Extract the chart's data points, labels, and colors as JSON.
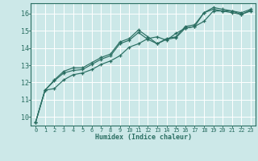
{
  "xlabel": "Humidex (Indice chaleur)",
  "bg_color": "#cce8e8",
  "grid_color": "#ffffff",
  "line_color": "#2a6e62",
  "xlim": [
    -0.5,
    23.5
  ],
  "ylim": [
    9.5,
    16.6
  ],
  "xticks": [
    0,
    1,
    2,
    3,
    4,
    5,
    6,
    7,
    8,
    9,
    10,
    11,
    12,
    13,
    14,
    15,
    16,
    17,
    18,
    19,
    20,
    21,
    22,
    23
  ],
  "yticks": [
    10,
    11,
    12,
    13,
    14,
    15,
    16
  ],
  "series": [
    [
      9.7,
      11.55,
      12.1,
      12.55,
      12.7,
      12.75,
      13.05,
      13.35,
      13.55,
      14.25,
      14.45,
      14.9,
      14.5,
      14.25,
      14.5,
      14.6,
      15.15,
      15.25,
      16.05,
      16.25,
      16.15,
      16.05,
      15.95,
      16.2
    ],
    [
      9.7,
      11.55,
      12.15,
      12.65,
      12.85,
      12.85,
      13.15,
      13.45,
      13.65,
      14.35,
      14.55,
      15.05,
      14.65,
      14.25,
      14.55,
      14.65,
      15.25,
      15.35,
      16.05,
      16.35,
      16.25,
      16.15,
      16.05,
      16.25
    ],
    [
      9.7,
      11.55,
      11.65,
      12.15,
      12.45,
      12.55,
      12.75,
      13.05,
      13.25,
      13.55,
      14.05,
      14.25,
      14.55,
      14.65,
      14.45,
      14.85,
      15.15,
      15.25,
      15.55,
      16.15,
      16.15,
      16.15,
      15.95,
      16.15
    ]
  ]
}
